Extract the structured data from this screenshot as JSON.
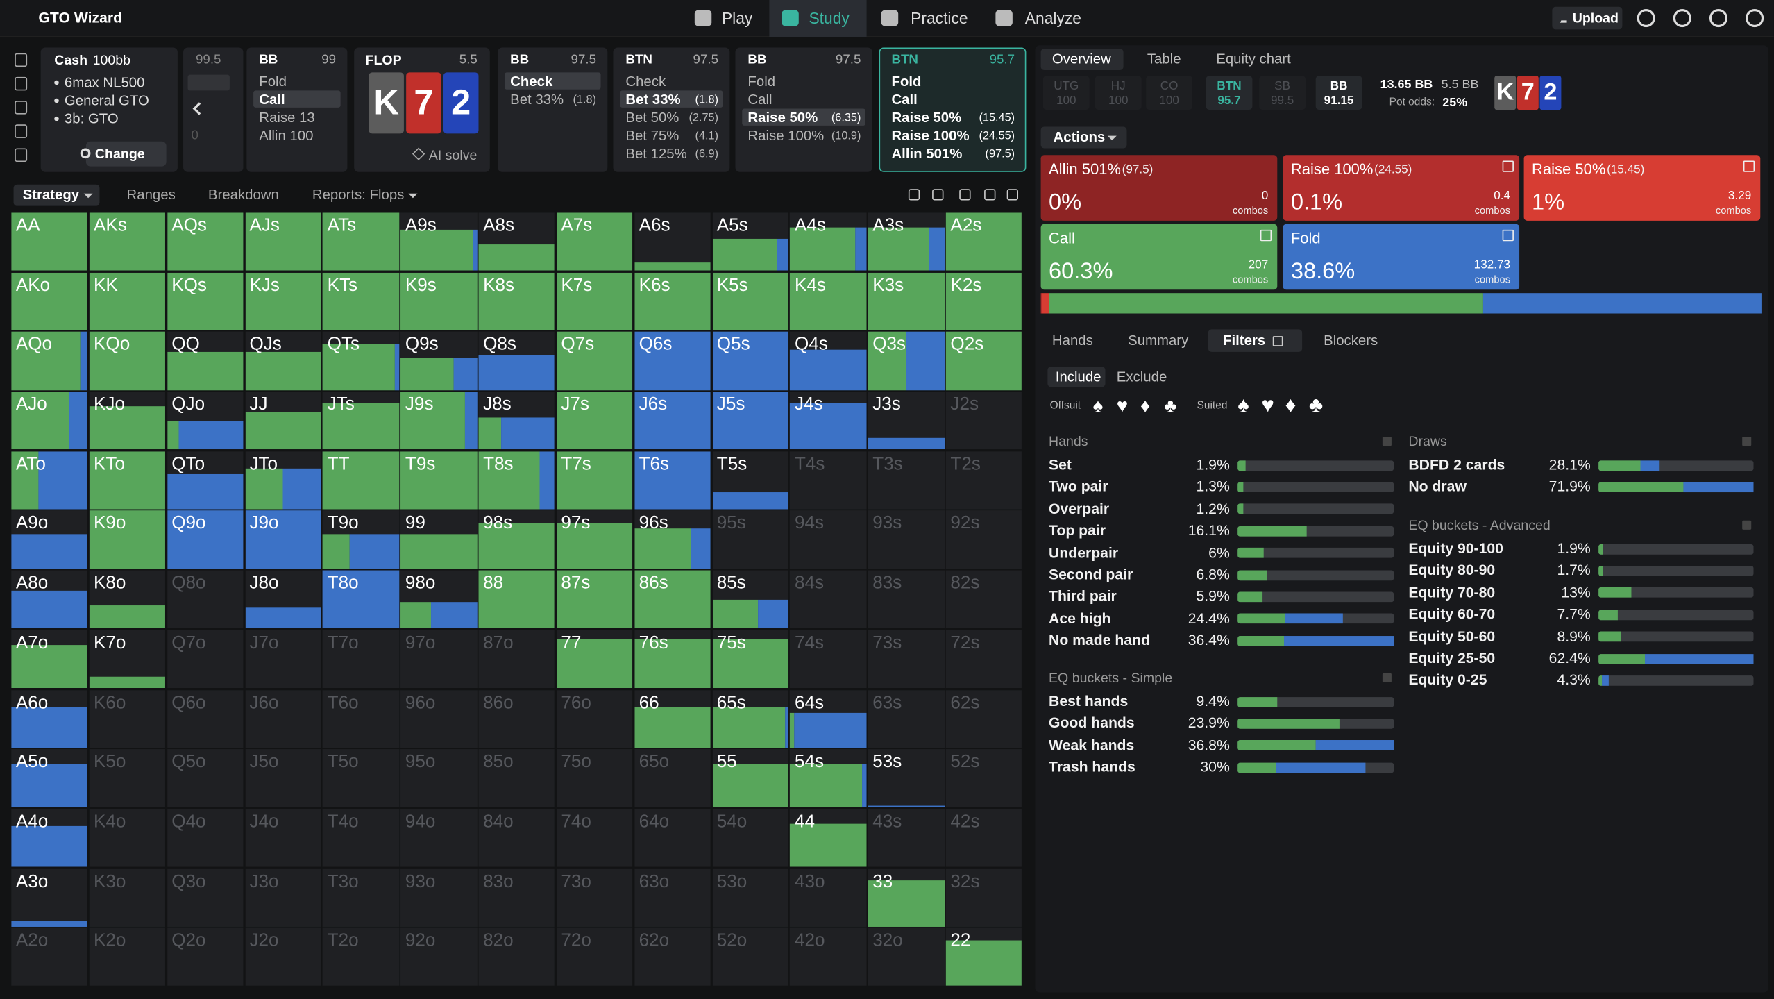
{
  "header": {
    "brand": "GTO Wizard",
    "nav": [
      "Play",
      "Study",
      "Practice",
      "Analyze"
    ],
    "active_nav": 1,
    "upload": "Upload"
  },
  "settings": {
    "game": "Cash",
    "stack": "100bb",
    "items": [
      "6max NL500",
      "General GTO",
      "3b: GTO"
    ],
    "button": "Change"
  },
  "back": {
    "stack": 99.5,
    "pot": 0
  },
  "flop": {
    "label": "FLOP",
    "pot": 5.5,
    "cards": [
      "K",
      "7",
      "2"
    ],
    "solve": "AI solve"
  },
  "nodes": [
    {
      "position": "BB",
      "stack": 99,
      "selected": 1,
      "actions": [
        {
          "label": "Fold"
        },
        {
          "label": "Call"
        },
        {
          "label": "Raise 13"
        },
        {
          "label": "Allin 100"
        }
      ]
    },
    {
      "position": "BB",
      "stack": 97.5,
      "selected": 0,
      "actions": [
        {
          "label": "Check"
        },
        {
          "label": "Bet 33%",
          "size": "(1.8)"
        }
      ]
    },
    {
      "position": "BTN",
      "stack": 97.5,
      "selected": 1,
      "actions": [
        {
          "label": "Check"
        },
        {
          "label": "Bet 33%",
          "size": "(1.8)"
        },
        {
          "label": "Bet 50%",
          "size": "(2.75)"
        },
        {
          "label": "Bet 75%",
          "size": "(4.1)"
        },
        {
          "label": "Bet 125%",
          "size": "(6.9)"
        }
      ]
    },
    {
      "position": "BB",
      "stack": 97.5,
      "selected": 2,
      "actions": [
        {
          "label": "Fold"
        },
        {
          "label": "Call"
        },
        {
          "label": "Raise 50%",
          "size": "(6.35)"
        },
        {
          "label": "Raise 100%",
          "size": "(10.9)"
        }
      ]
    },
    {
      "position": "BTN",
      "stack": 95.7,
      "current": true,
      "actions": [
        {
          "label": "Fold"
        },
        {
          "label": "Call"
        },
        {
          "label": "Raise 50%",
          "size": "(15.45)"
        },
        {
          "label": "Raise 100%",
          "size": "(24.55)"
        },
        {
          "label": "Allin 501%",
          "size": "(97.5)"
        }
      ]
    }
  ],
  "strategy_tabs": [
    "Strategy",
    "Ranges",
    "Breakdown",
    "Reports: Flops"
  ],
  "grid": {
    "hands": [
      [
        "AA",
        "AKs",
        "AQs",
        "AJs",
        "ATs",
        "A9s",
        "A8s",
        "A7s",
        "A6s",
        "A5s",
        "A4s",
        "A3s",
        "A2s"
      ],
      [
        "AKo",
        "KK",
        "KQs",
        "KJs",
        "KTs",
        "K9s",
        "K8s",
        "K7s",
        "K6s",
        "K5s",
        "K4s",
        "K3s",
        "K2s"
      ],
      [
        "AQo",
        "KQo",
        "QQ",
        "QJs",
        "QTs",
        "Q9s",
        "Q8s",
        "Q7s",
        "Q6s",
        "Q5s",
        "Q4s",
        "Q3s",
        "Q2s"
      ],
      [
        "AJo",
        "KJo",
        "QJo",
        "JJ",
        "JTs",
        "J9s",
        "J8s",
        "J7s",
        "J6s",
        "J5s",
        "J4s",
        "J3s",
        "J2s"
      ],
      [
        "ATo",
        "KTo",
        "QTo",
        "JTo",
        "TT",
        "T9s",
        "T8s",
        "T7s",
        "T6s",
        "T5s",
        "T4s",
        "T3s",
        "T2s"
      ],
      [
        "A9o",
        "K9o",
        "Q9o",
        "J9o",
        "T9o",
        "99",
        "98s",
        "97s",
        "96s",
        "95s",
        "94s",
        "93s",
        "92s"
      ],
      [
        "A8o",
        "K8o",
        "Q8o",
        "J8o",
        "T8o",
        "98o",
        "88",
        "87s",
        "86s",
        "85s",
        "84s",
        "83s",
        "82s"
      ],
      [
        "A7o",
        "K7o",
        "Q7o",
        "J7o",
        "T7o",
        "97o",
        "87o",
        "77",
        "76s",
        "75s",
        "74s",
        "73s",
        "72s"
      ],
      [
        "A6o",
        "K6o",
        "Q6o",
        "J6o",
        "T6o",
        "96o",
        "86o",
        "76o",
        "66",
        "65s",
        "64s",
        "63s",
        "62s"
      ],
      [
        "A5o",
        "K5o",
        "Q5o",
        "J5o",
        "T5o",
        "95o",
        "85o",
        "75o",
        "65o",
        "55",
        "54s",
        "53s",
        "52s"
      ],
      [
        "A4o",
        "K4o",
        "Q4o",
        "J4o",
        "T4o",
        "94o",
        "84o",
        "74o",
        "64o",
        "54o",
        "44",
        "43s",
        "42s"
      ],
      [
        "A3o",
        "K3o",
        "Q3o",
        "J3o",
        "T3o",
        "93o",
        "83o",
        "73o",
        "63o",
        "53o",
        "43o",
        "33",
        "32s"
      ],
      [
        "A2o",
        "K2o",
        "Q2o",
        "J2o",
        "T2o",
        "92o",
        "82o",
        "72o",
        "62o",
        "52o",
        "42o",
        "32o",
        "22"
      ]
    ],
    "weight": [
      [
        1,
        1,
        1,
        1,
        1,
        0.7,
        0.45,
        1,
        0.15,
        0.55,
        0.75,
        0.75,
        1
      ],
      [
        1,
        1,
        1,
        1,
        1,
        1,
        1,
        1,
        1,
        1,
        1,
        1,
        1
      ],
      [
        1,
        1,
        0.65,
        0.65,
        0.8,
        0.55,
        0.6,
        1,
        1,
        1,
        0.7,
        1,
        1
      ],
      [
        1,
        0.75,
        0.5,
        0.65,
        0.8,
        1,
        0.55,
        1,
        1,
        1,
        0.8,
        0.2,
        0
      ],
      [
        1,
        1,
        0.6,
        0.7,
        1,
        1,
        1,
        1,
        1,
        0.3,
        0,
        0,
        0
      ],
      [
        0.6,
        1,
        1,
        1,
        0.6,
        0.6,
        0.8,
        0.8,
        0.7,
        0,
        0,
        0,
        0
      ],
      [
        0.65,
        0.4,
        0,
        0.35,
        1,
        0.45,
        1,
        1,
        1,
        0.5,
        0,
        0,
        0
      ],
      [
        0.75,
        0.2,
        0,
        0,
        0,
        0,
        0,
        0.85,
        0.85,
        0.85,
        0,
        0,
        0
      ],
      [
        0.7,
        0,
        0,
        0,
        0,
        0,
        0,
        0,
        0.7,
        0.7,
        0.6,
        0,
        0
      ],
      [
        0.75,
        0,
        0,
        0,
        0,
        0,
        0,
        0,
        0,
        0.75,
        0.75,
        0.03,
        0
      ],
      [
        0.7,
        0,
        0,
        0,
        0,
        0,
        0,
        0,
        0,
        0,
        0.75,
        0,
        0
      ],
      [
        0.1,
        0,
        0,
        0,
        0,
        0,
        0,
        0,
        0,
        0,
        0,
        0.8,
        0
      ],
      [
        0,
        0,
        0,
        0,
        0,
        0,
        0,
        0,
        0,
        0,
        0,
        0,
        0.8
      ]
    ],
    "call_share": [
      [
        1,
        1,
        1,
        1,
        1,
        0.95,
        1,
        1,
        1,
        0.85,
        0.85,
        0.8,
        1
      ],
      [
        1,
        1,
        1,
        1,
        1,
        1,
        1,
        1,
        1,
        1,
        1,
        1,
        1
      ],
      [
        0.9,
        1,
        1,
        1,
        0.95,
        0.7,
        0,
        1,
        0,
        0,
        0,
        0.5,
        1
      ],
      [
        0.75,
        1,
        0.15,
        1,
        1,
        0.85,
        0.3,
        1,
        0,
        0,
        0,
        0,
        0
      ],
      [
        0.35,
        1,
        0,
        0.5,
        1,
        1,
        0.8,
        1,
        0,
        0,
        0,
        0,
        0
      ],
      [
        0,
        1,
        0,
        0,
        0.35,
        1,
        1,
        1,
        0.75,
        0,
        0,
        0,
        0
      ],
      [
        0,
        1,
        0,
        0,
        0,
        0.4,
        1,
        1,
        1,
        0.6,
        0,
        0,
        0
      ],
      [
        1,
        1,
        0,
        0,
        0,
        0,
        0,
        1,
        1,
        1,
        0,
        0,
        0
      ],
      [
        0,
        0,
        0,
        0,
        0,
        0,
        0,
        0,
        1,
        0.95,
        0.05,
        0,
        0
      ],
      [
        0,
        0,
        0,
        0,
        0,
        0,
        0,
        0,
        0,
        1,
        0.95,
        0,
        0
      ],
      [
        0,
        0,
        0,
        0,
        0,
        0,
        0,
        0,
        0,
        0,
        1,
        0,
        0
      ],
      [
        0,
        0,
        0,
        0,
        0,
        0,
        0,
        0,
        0,
        0,
        0,
        1,
        0
      ],
      [
        0,
        0,
        0,
        0,
        0,
        0,
        0,
        0,
        0,
        0,
        0,
        0,
        1
      ]
    ],
    "colors": {
      "call": "#58a65b",
      "fold": "#3c72c6"
    }
  },
  "overview": {
    "tabs": [
      "Overview",
      "Table",
      "Equity chart"
    ],
    "positions": [
      {
        "name": "UTG",
        "stack": 100
      },
      {
        "name": "HJ",
        "stack": 100
      },
      {
        "name": "CO",
        "stack": 100
      },
      {
        "name": "BTN",
        "stack": 95.7,
        "last": true
      },
      {
        "name": "SB",
        "stack": 99.5
      },
      {
        "name": "BB",
        "stack": 91.15,
        "to_act": true
      }
    ],
    "pot": "13.65 BB",
    "to_call": "5.5 BB",
    "pot_odds_label": "Pot odds:",
    "pot_odds": "25%",
    "board": [
      "K",
      "7",
      "2"
    ],
    "actions_button": "Actions"
  },
  "action_cards": [
    {
      "name": "Allin 501%",
      "size": "(97.5)",
      "freq": {
        "value": 0,
        "label": "0%"
      },
      "combos": "0",
      "combos_label": "combos",
      "color": "#8e2424"
    },
    {
      "name": "Raise 100%",
      "size": "(24.55)",
      "freq": {
        "value": 0.1,
        "label": "0.1%"
      },
      "combos": "0.4",
      "combos_label": "combos",
      "color": "#b32e2d"
    },
    {
      "name": "Raise 50%",
      "size": "(15.45)",
      "freq": {
        "value": 1,
        "label": "1%"
      },
      "combos": "3.29",
      "combos_label": "combos",
      "color": "#d73d33"
    },
    {
      "name": "Call",
      "freq": {
        "value": 60.3,
        "label": "60.3%"
      },
      "combos": "207",
      "combos_label": "combos",
      "color": "#58a65b"
    },
    {
      "name": "Fold",
      "freq": {
        "value": 38.6,
        "label": "38.6%"
      },
      "combos": "132.73",
      "combos_label": "combos",
      "color": "#3c72c6"
    }
  ],
  "detail_tabs": [
    "Hands",
    "Summary",
    "Filters",
    "Blockers"
  ],
  "active_detail_tab": 2,
  "filter_modes": [
    "Include",
    "Exclude"
  ],
  "offsuit_label": "Offsuit",
  "offsuit_suits": [
    "♠",
    "♥",
    "♦",
    "♣"
  ],
  "suited_label": "Suited",
  "suited_suits": [
    "♠",
    "♥",
    "♦",
    "♣"
  ],
  "groups": [
    {
      "title": "Hands",
      "rows": [
        {
          "name": "Set",
          "value": 1.9,
          "label": "1.9%",
          "call_share": 1
        },
        {
          "name": "Two pair",
          "value": 1.3,
          "label": "1.3%",
          "call_share": 1
        },
        {
          "name": "Overpair",
          "value": 1.2,
          "label": "1.2%",
          "call_share": 1
        },
        {
          "name": "Top pair",
          "value": 16.1,
          "label": "16.1%",
          "call_share": 1
        },
        {
          "name": "Underpair",
          "value": 6,
          "label": "6%",
          "call_share": 1
        },
        {
          "name": "Second pair",
          "value": 6.8,
          "label": "6.8%",
          "call_share": 1
        },
        {
          "name": "Third pair",
          "value": 5.9,
          "label": "5.9%",
          "call_share": 1
        },
        {
          "name": "Ace high",
          "value": 24.4,
          "label": "24.4%",
          "call_share": 0.45
        },
        {
          "name": "No made hand",
          "value": 36.4,
          "label": "36.4%",
          "call_share": 0.3
        }
      ]
    },
    {
      "title": "EQ buckets - Simple",
      "rows": [
        {
          "name": "Best hands",
          "value": 9.4,
          "label": "9.4%",
          "call_share": 1
        },
        {
          "name": "Good hands",
          "value": 23.9,
          "label": "23.9%",
          "call_share": 1
        },
        {
          "name": "Weak hands",
          "value": 36.8,
          "label": "36.8%",
          "call_share": 0.5
        },
        {
          "name": "Trash hands",
          "value": 30,
          "label": "30%",
          "call_share": 0.3
        }
      ]
    },
    {
      "title": "Draws",
      "rows": [
        {
          "name": "BDFD 2 cards",
          "value": 28.1,
          "label": "28.1%",
          "call_share": 0.7
        },
        {
          "name": "No draw",
          "value": 71.9,
          "label": "71.9%",
          "call_share": 0.55
        }
      ]
    },
    {
      "title": "EQ buckets - Advanced",
      "rows": [
        {
          "name": "Equity 90-100",
          "value": 1.9,
          "label": "1.9%",
          "call_share": 1
        },
        {
          "name": "Equity 80-90",
          "value": 1.7,
          "label": "1.7%",
          "call_share": 1
        },
        {
          "name": "Equity 70-80",
          "value": 13,
          "label": "13%",
          "call_share": 1
        },
        {
          "name": "Equity 60-70",
          "value": 7.7,
          "label": "7.7%",
          "call_share": 1
        },
        {
          "name": "Equity 50-60",
          "value": 8.9,
          "label": "8.9%",
          "call_share": 1
        },
        {
          "name": "Equity 25-50",
          "value": 62.4,
          "label": "62.4%",
          "call_share": 0.3
        },
        {
          "name": "Equity 0-25",
          "value": 4.3,
          "label": "4.3%",
          "call_share": 0.3
        }
      ]
    }
  ]
}
